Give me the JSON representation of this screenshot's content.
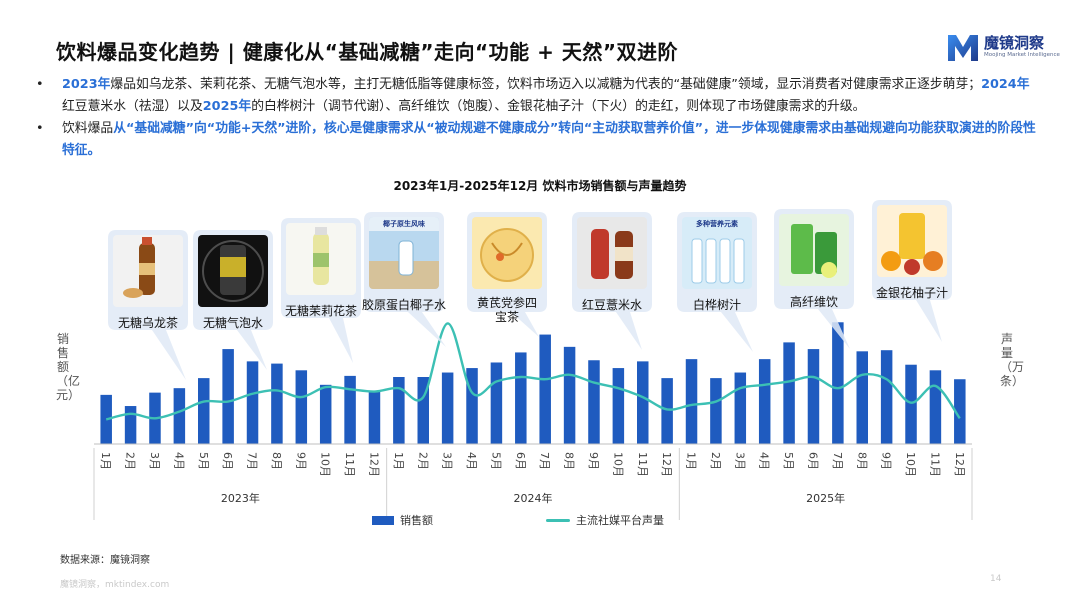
{
  "title": "饮料爆品变化趋势 | 健康化从“基础减糖”走向“功能 + 天然”双进阶",
  "brand": {
    "name": "魔镜洞察",
    "subtitle": "Moojing Market Intelligence",
    "colors": {
      "primary": "#1f3a8a",
      "accent": "#3a8df0"
    }
  },
  "bullets": [
    {
      "marker": "•",
      "segments": [
        {
          "text": "2023年",
          "highlight": true
        },
        {
          "text": "爆品如乌龙茶、茉莉花茶、无糖气泡水等，主打无糖低脂等健康标签，饮料市场迈入以减糖为代表的“基础健康”领域，显示消费者对健康需求正逐步萌芽；",
          "highlight": false
        },
        {
          "text": "2024年",
          "highlight": true
        },
        {
          "text": "红豆薏米水（祛湿）以及",
          "highlight": false
        },
        {
          "text": "2025年",
          "highlight": true
        },
        {
          "text": "的白桦树汁（调节代谢）、高纤维饮（饱腹）、金银花柚子汁（下火）的走红，则体现了市场健康需求的升级。",
          "highlight": false
        }
      ]
    },
    {
      "marker": "•",
      "segments": [
        {
          "text": "饮料爆品",
          "highlight": false
        },
        {
          "text": "从“基础减糖”向“功能+天然”进阶，核心是健康需求从“被动规避不健康成分”转向“主动获取营养价值”，进一步体现健康需求由基础规避向功能获取演进的阶段性特征。",
          "highlight": true
        }
      ]
    }
  ],
  "products": [
    {
      "label": "无糖乌龙茶",
      "icon": "bottled-oolong-tea-image",
      "month_index": 1
    },
    {
      "label": "无糖气泡水",
      "icon": "sparkling-water-can-image",
      "month_index": 4
    },
    {
      "label": "无糖茉莉花茶",
      "icon": "jasmine-tea-bottle-image",
      "month_index": 7
    },
    {
      "label": "胶原蛋白椰子水",
      "icon": "coconut-water-image",
      "month_index": 10,
      "image_text": "椰子原生风味"
    },
    {
      "label": "黄芪党参四宝茶",
      "icon": "herbal-tea-cup-image",
      "month_index": 13
    },
    {
      "label": "红豆薏米水",
      "icon": "red-bean-barley-drink-image",
      "month_index": 16
    },
    {
      "label": "白桦树汁",
      "icon": "birch-sap-bottles-image",
      "month_index": 19,
      "image_text": "多种营养元素"
    },
    {
      "label": "高纤维饮",
      "icon": "high-fiber-drink-image",
      "month_index": 22
    },
    {
      "label": "金银花柚子汁",
      "icon": "honeysuckle-pomelo-juice-image",
      "month_index": 25
    }
  ],
  "axis_left_label": "销售额（亿元）",
  "axis_right_label": "声量（万条）",
  "chart_data": {
    "type": "bar",
    "title": "2023年1月-2025年12月 饮料市场销售额与声量趋势",
    "categories": [
      "1月",
      "2月",
      "3月",
      "4月",
      "5月",
      "6月",
      "7月",
      "8月",
      "9月",
      "10月",
      "11月",
      "12月",
      "1月",
      "2月",
      "3月",
      "4月",
      "5月",
      "6月",
      "7月",
      "8月",
      "9月",
      "10月",
      "11月",
      "12月",
      "1月",
      "2月",
      "3月",
      "4月",
      "5月",
      "6月",
      "7月",
      "8月",
      "9月",
      "10月",
      "11月",
      "12月"
    ],
    "year_groups": [
      {
        "label": "2023年",
        "start": 0,
        "end": 11
      },
      {
        "label": "2024年",
        "start": 12,
        "end": 23
      },
      {
        "label": "2025年",
        "start": 24,
        "end": 35
      }
    ],
    "series": [
      {
        "name": "销售额",
        "type": "bar",
        "axis": "left",
        "color": "#1f5bbf",
        "values": [
          44,
          34,
          46,
          50,
          59,
          85,
          74,
          72,
          66,
          53,
          61,
          47,
          60,
          60,
          64,
          68,
          73,
          82,
          98,
          87,
          75,
          68,
          74,
          59,
          76,
          59,
          64,
          76,
          91,
          85,
          109,
          83,
          84,
          71,
          66,
          58
        ]
      },
      {
        "name": "主流社媒平台声量",
        "type": "line",
        "axis": "right",
        "color": "#3cc0b4",
        "values": [
          22,
          27,
          23,
          29,
          38,
          38,
          45,
          48,
          42,
          51,
          49,
          47,
          50,
          42,
          108,
          46,
          56,
          60,
          58,
          62,
          55,
          50,
          42,
          31,
          35,
          38,
          50,
          53,
          56,
          60,
          50,
          62,
          58,
          37,
          52,
          23
        ]
      }
    ],
    "ylim_left": [
      0,
      120
    ],
    "ylim_right": [
      0,
      120
    ],
    "grid": false,
    "legend": "bottom"
  },
  "source": "数据来源：魔镜洞察",
  "footer": "魔镜洞察，mktindex.com",
  "page_number": "14"
}
